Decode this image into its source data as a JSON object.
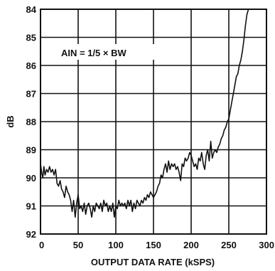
{
  "chart_data": {
    "type": "line",
    "xlabel": "OUTPUT DATA RATE (kSPS)",
    "ylabel": "dB",
    "xlim": [
      0,
      300
    ],
    "ylim": [
      84,
      92
    ],
    "y_inverted": true,
    "grid": true,
    "x_ticks": [
      "0",
      "50",
      "100",
      "150",
      "200",
      "250",
      "300"
    ],
    "y_ticks": [
      "84",
      "85",
      "86",
      "87",
      "88",
      "89",
      "90",
      "91",
      "92"
    ],
    "annotation": "AIN = 1/5 × BW",
    "series": [
      {
        "x": [
          0,
          1.5,
          3,
          4.5,
          6,
          8,
          10,
          12,
          14,
          16,
          18,
          20,
          22,
          24,
          26,
          28,
          30,
          32,
          34,
          36,
          38,
          40,
          42,
          44,
          46,
          48,
          50,
          52,
          54,
          56,
          58,
          60,
          62,
          64,
          66,
          68,
          70,
          72,
          74,
          76,
          78,
          80,
          82,
          84,
          86,
          88,
          90,
          92,
          94,
          96,
          98,
          100,
          102,
          104,
          106,
          108,
          110,
          112,
          114,
          116,
          118,
          120,
          122,
          124,
          126,
          128,
          130,
          132,
          134,
          136,
          138,
          140,
          142,
          144,
          146,
          148,
          150,
          152,
          154,
          156,
          158,
          160,
          162,
          164,
          166,
          168,
          170,
          172,
          174,
          176,
          178,
          180,
          182,
          184,
          186,
          188,
          190,
          192,
          194,
          196,
          198,
          200,
          202,
          204,
          206,
          208,
          210,
          212,
          214,
          216,
          218,
          220,
          222,
          224,
          226,
          228,
          230,
          232,
          234,
          236,
          238,
          240,
          242,
          244,
          246,
          248,
          250,
          252,
          254,
          256,
          258,
          260,
          262,
          264,
          266,
          268,
          270,
          272,
          274,
          276,
          278,
          280,
          282
        ],
        "values": [
          89.5,
          89.8,
          90.0,
          89.6,
          89.9,
          89.7,
          89.8,
          89.6,
          89.8,
          89.7,
          89.9,
          89.7,
          90.2,
          90.3,
          90.1,
          90.4,
          90.5,
          90.7,
          90.3,
          90.5,
          90.6,
          90.8,
          91.2,
          90.8,
          91.4,
          90.9,
          90.6,
          91.1,
          91.0,
          91.2,
          90.9,
          91.3,
          91.0,
          90.9,
          91.1,
          91.4,
          91.0,
          91.2,
          90.9,
          91.0,
          91.1,
          90.9,
          91.2,
          90.8,
          91.0,
          90.9,
          91.2,
          91.0,
          91.2,
          90.9,
          91.4,
          91.0,
          91.1,
          90.8,
          91.0,
          90.9,
          91.0,
          90.9,
          91.1,
          90.8,
          91.0,
          90.8,
          91.2,
          90.9,
          91.1,
          90.8,
          90.9,
          91.0,
          90.8,
          90.9,
          90.7,
          90.8,
          90.6,
          90.7,
          90.5,
          90.6,
          90.7,
          90.6,
          90.5,
          90.3,
          90.2,
          89.9,
          90.0,
          89.7,
          89.5,
          89.8,
          89.4,
          89.7,
          89.5,
          89.6,
          89.5,
          89.7,
          89.6,
          89.8,
          90.1,
          89.5,
          89.6,
          89.3,
          89.4,
          89.3,
          89.1,
          89.2,
          89.4,
          89.6,
          89.5,
          89.7,
          89.3,
          89.4,
          89.1,
          89.5,
          89.7,
          89.2,
          89.0,
          89.4,
          88.7,
          89.3,
          89.1,
          89.0,
          89.1,
          88.9,
          88.8,
          88.6,
          88.5,
          88.3,
          88.2,
          88.0,
          87.9,
          87.6,
          87.3,
          87.0,
          86.7,
          86.4,
          86.3,
          86.0,
          85.8,
          85.5,
          85.1,
          84.6,
          84.2,
          84.0,
          84.0,
          84.0,
          84.0
        ]
      }
    ]
  }
}
